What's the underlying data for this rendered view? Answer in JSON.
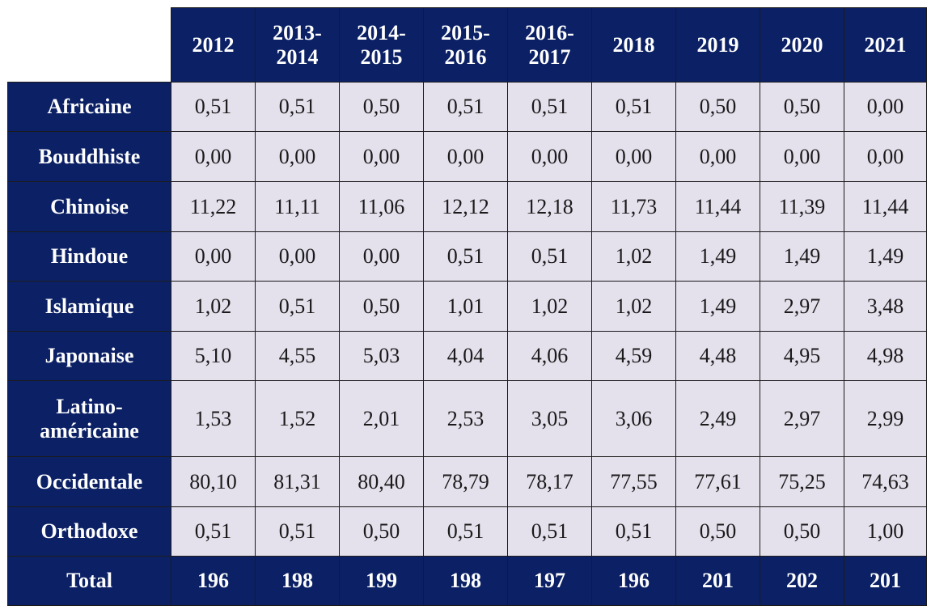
{
  "chart_data": {
    "type": "table",
    "columns": [
      "2012",
      "2013-\n2014",
      "2014-\n2015",
      "2015-\n2016",
      "2016-\n2017",
      "2018",
      "2019",
      "2020",
      "2021"
    ],
    "rows": [
      {
        "label": "Africaine",
        "values": [
          "0,51",
          "0,51",
          "0,50",
          "0,51",
          "0,51",
          "0,51",
          "0,50",
          "0,50",
          "0,00"
        ]
      },
      {
        "label": "Bouddhiste",
        "values": [
          "0,00",
          "0,00",
          "0,00",
          "0,00",
          "0,00",
          "0,00",
          "0,00",
          "0,00",
          "0,00"
        ]
      },
      {
        "label": "Chinoise",
        "values": [
          "11,22",
          "11,11",
          "11,06",
          "12,12",
          "12,18",
          "11,73",
          "11,44",
          "11,39",
          "11,44"
        ]
      },
      {
        "label": "Hindoue",
        "values": [
          "0,00",
          "0,00",
          "0,00",
          "0,51",
          "0,51",
          "1,02",
          "1,49",
          "1,49",
          "1,49"
        ]
      },
      {
        "label": "Islamique",
        "values": [
          "1,02",
          "0,51",
          "0,50",
          "1,01",
          "1,02",
          "1,02",
          "1,49",
          "2,97",
          "3,48"
        ]
      },
      {
        "label": "Japonaise",
        "values": [
          "5,10",
          "4,55",
          "5,03",
          "4,04",
          "4,06",
          "4,59",
          "4,48",
          "4,95",
          "4,98"
        ]
      },
      {
        "label": "Latino-\naméricaine",
        "values": [
          "1,53",
          "1,52",
          "2,01",
          "2,53",
          "3,05",
          "3,06",
          "2,49",
          "2,97",
          "2,99"
        ]
      },
      {
        "label": "Occidentale",
        "values": [
          "80,10",
          "81,31",
          "80,40",
          "78,79",
          "78,17",
          "77,55",
          "77,61",
          "75,25",
          "74,63"
        ]
      },
      {
        "label": "Orthodoxe",
        "values": [
          "0,51",
          "0,51",
          "0,50",
          "0,51",
          "0,51",
          "0,51",
          "0,50",
          "0,50",
          "1,00"
        ]
      }
    ],
    "total": {
      "label": "Total",
      "values": [
        "196",
        "198",
        "199",
        "198",
        "197",
        "196",
        "201",
        "202",
        "201"
      ]
    },
    "colors": {
      "header_background": "#0c2165",
      "header_text": "#ffffff",
      "cell_background": "#e4e0ec"
    }
  }
}
